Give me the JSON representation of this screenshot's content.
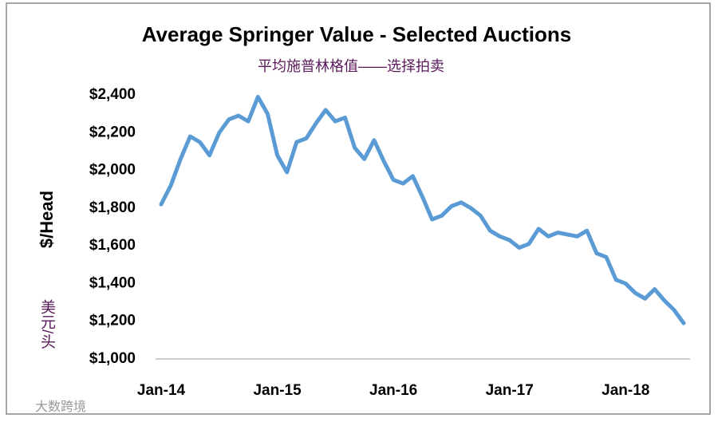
{
  "chart_data": {
    "type": "line",
    "title": "Average Springer Value - Selected Auctions",
    "subtitle": "平均施普林格值——选择拍卖",
    "y_label": "$/Head",
    "y_label_cn": "美元/头",
    "watermark": "大数跨境",
    "categories": [
      "Jan-14",
      null,
      null,
      null,
      null,
      null,
      null,
      null,
      null,
      null,
      null,
      null,
      "Jan-15",
      null,
      null,
      null,
      null,
      null,
      null,
      null,
      null,
      null,
      null,
      null,
      "Jan-16",
      null,
      null,
      null,
      null,
      null,
      null,
      null,
      null,
      null,
      null,
      null,
      "Jan-17",
      null,
      null,
      null,
      null,
      null,
      null,
      null,
      null,
      null,
      null,
      null,
      "Jan-18",
      null,
      null,
      null,
      null,
      null,
      null
    ],
    "series": [
      {
        "name": "Average Springer Value",
        "color": "#5b9bd5",
        "values": [
          1820,
          1920,
          2060,
          2180,
          2150,
          2080,
          2200,
          2270,
          2290,
          2260,
          2390,
          2300,
          2080,
          1990,
          2150,
          2170,
          2250,
          2320,
          2260,
          2280,
          2120,
          2060,
          2160,
          2050,
          1950,
          1930,
          1970,
          1860,
          1740,
          1760,
          1810,
          1830,
          1800,
          1760,
          1680,
          1650,
          1630,
          1590,
          1610,
          1690,
          1650,
          1670,
          1660,
          1650,
          1680,
          1560,
          1540,
          1420,
          1400,
          1350,
          1320,
          1370,
          1310,
          1260,
          1190
        ]
      }
    ],
    "ylim": [
      1000,
      2400
    ],
    "yticks": [
      {
        "value": 1000,
        "label": "$1,000"
      },
      {
        "value": 1200,
        "label": "$1,200"
      },
      {
        "value": 1400,
        "label": "$1,400"
      },
      {
        "value": 1600,
        "label": "$1,600"
      },
      {
        "value": 1800,
        "label": "$1,800"
      },
      {
        "value": 2000,
        "label": "$2,000"
      },
      {
        "value": 2200,
        "label": "$2,200"
      },
      {
        "value": 2400,
        "label": "$2,400"
      }
    ],
    "grid": false
  }
}
